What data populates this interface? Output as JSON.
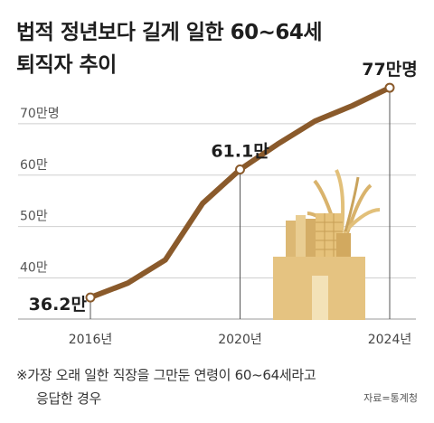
{
  "title": {
    "line1": "법적 정년보다 길게 일한 60~64세",
    "line2": "퇴직자 추이"
  },
  "chart_data": {
    "type": "line",
    "title": "법적 정년보다 길게 일한 60~64세 퇴직자 추이",
    "x": [
      2016,
      2017,
      2018,
      2019,
      2020,
      2021,
      2022,
      2023,
      2024
    ],
    "series": [
      {
        "values": [
          36.2,
          39,
          43.5,
          54.5,
          61.1,
          66,
          70.5,
          73.5,
          77
        ]
      }
    ],
    "ylim": [
      32,
      80
    ],
    "yticks": [
      {
        "value": 40,
        "label": "40만"
      },
      {
        "value": 50,
        "label": "50만"
      },
      {
        "value": 60,
        "label": "60만"
      },
      {
        "value": 70,
        "label": "70만명"
      }
    ],
    "xticks": [
      {
        "value": 2016,
        "label": "2016년"
      },
      {
        "value": 2020,
        "label": "2020년"
      },
      {
        "value": 2024,
        "label": "2024년"
      }
    ],
    "annotations": [
      {
        "x": 2016,
        "value": 36.2,
        "label": "36.2만"
      },
      {
        "x": 2020,
        "value": 61.1,
        "label": "61.1만"
      },
      {
        "x": 2024,
        "value": 77,
        "label": "77만명"
      }
    ],
    "grid": true,
    "legend": "none"
  },
  "colors": {
    "line": "#8a5a2b",
    "grid": "#cfcfcf",
    "illustration_box": "#e5c381",
    "illustration_dark": "#cda45d",
    "illustration_light": "#f3e2b8"
  },
  "footnote": {
    "line1": "※가장 오래 일한 직장을 그만둔 연령이 60~64세라고",
    "line2": "응답한 경우"
  },
  "source": "자료=통계청"
}
